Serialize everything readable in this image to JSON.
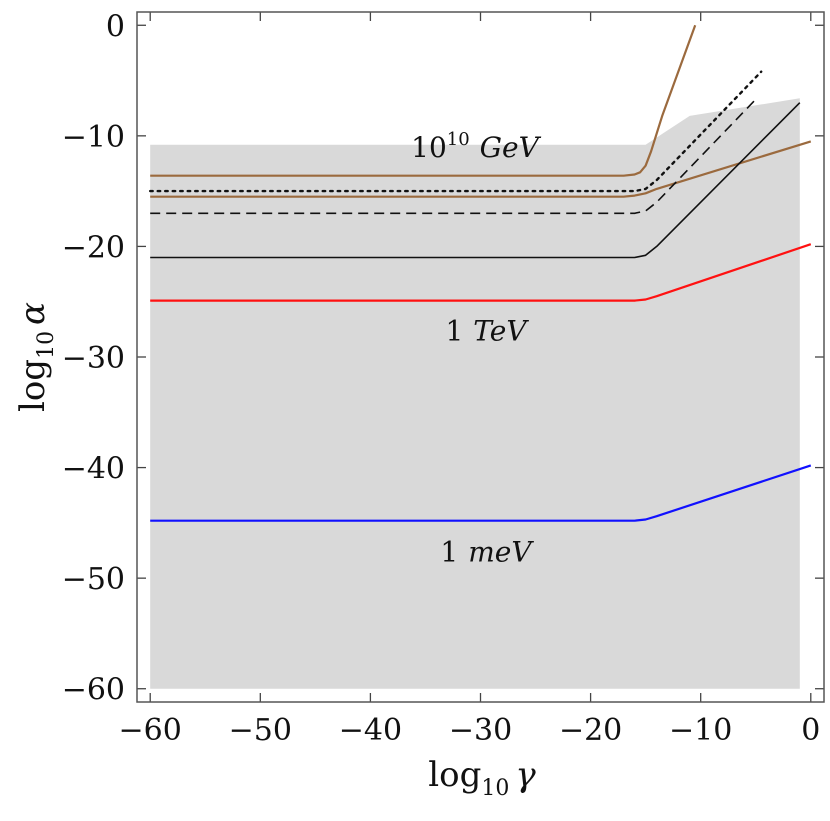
{
  "chart_data": {
    "type": "line",
    "title": "",
    "xlabel": "log",
    "xlabel_sub": "10",
    "xlabel_var": "γ",
    "ylabel": "log",
    "ylabel_sub": "10",
    "ylabel_var": "α",
    "xlim": [
      -61.2,
      1.2
    ],
    "ylim": [
      -61.2,
      1.2
    ],
    "grid": false,
    "xticks": [
      -60,
      -50,
      -40,
      -30,
      -20,
      -10,
      0
    ],
    "yticks": [
      -60,
      -50,
      -40,
      -30,
      -20,
      -10,
      0
    ],
    "xtick_labels": [
      "−60",
      "−50",
      "−40",
      "−30",
      "−20",
      "−10",
      "0"
    ],
    "ytick_labels": [
      "−60",
      "−50",
      "−40",
      "−30",
      "−20",
      "−10",
      "0"
    ],
    "shaded_region": {
      "color": "#d9d9d9",
      "x": [
        -60,
        -15,
        -11,
        -1,
        -1,
        -60
      ],
      "y": [
        -10.8,
        -10.8,
        -8.2,
        -6.6,
        -60,
        -60
      ]
    },
    "series": [
      {
        "name": "brown-steep",
        "color": "#9b6a3e",
        "dash": "solid",
        "width": 2.2,
        "x": [
          -60,
          -17,
          -16,
          -15.5,
          -15,
          -14.5,
          -13.5,
          -10.5
        ],
        "y": [
          -13.6,
          -13.6,
          -13.5,
          -13.3,
          -12.7,
          -11.4,
          -8.2,
          0
        ]
      },
      {
        "name": "dotted",
        "color": "#111111",
        "dash": "dotted",
        "width": 2.4,
        "x": [
          -60,
          -16,
          -15,
          -14,
          -4.5
        ],
        "y": [
          -15.0,
          -15.0,
          -14.8,
          -14.0,
          -4.2
        ]
      },
      {
        "name": "brown-shallow",
        "color": "#9b6a3e",
        "dash": "solid",
        "width": 2.2,
        "x": [
          -60,
          -17,
          -16,
          -15,
          -14,
          0
        ],
        "y": [
          -15.5,
          -15.5,
          -15.4,
          -15.2,
          -14.8,
          -10.5
        ]
      },
      {
        "name": "dashed",
        "color": "#111111",
        "dash": "dashed",
        "width": 1.6,
        "x": [
          -60,
          -16,
          -15,
          -14,
          -5
        ],
        "y": [
          -17.0,
          -17.0,
          -16.8,
          -16.0,
          -6.7
        ]
      },
      {
        "name": "black-solid",
        "color": "#111111",
        "dash": "solid",
        "width": 1.6,
        "x": [
          -60,
          -16,
          -15,
          -14,
          -1
        ],
        "y": [
          -21.0,
          -21.0,
          -20.8,
          -20.0,
          -7.0
        ]
      },
      {
        "name": "1 TeV",
        "color": "#ff1111",
        "dash": "solid",
        "width": 2.2,
        "x": [
          -60,
          -16,
          -15,
          -14,
          0
        ],
        "y": [
          -24.9,
          -24.9,
          -24.8,
          -24.5,
          -19.8
        ]
      },
      {
        "name": "1 meV",
        "color": "#1111ff",
        "dash": "solid",
        "width": 2.2,
        "x": [
          -60,
          -16,
          -15,
          -14,
          0
        ],
        "y": [
          -44.8,
          -44.8,
          -44.7,
          -44.4,
          -39.8
        ]
      }
    ],
    "annotations": [
      {
        "id": "annot-10-10-gev",
        "num": "10",
        "sup": "10",
        "unit": "GeV",
        "x": -30.5,
        "y": -11.9
      },
      {
        "id": "annot-1-tev",
        "num": "1",
        "unit": "TeV",
        "x": -29.5,
        "y": -28.5
      },
      {
        "id": "annot-1-mev",
        "num": "1",
        "unit": "meV",
        "x": -29.5,
        "y": -48.5
      }
    ]
  }
}
